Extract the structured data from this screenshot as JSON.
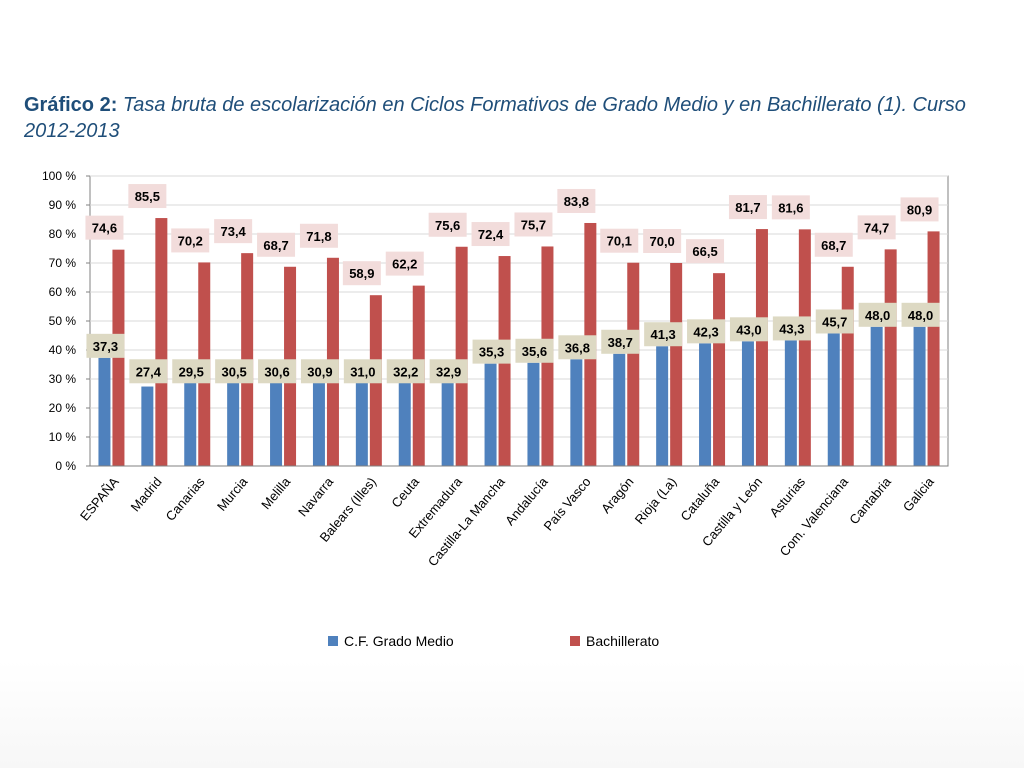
{
  "title_prefix": "Gráfico 2:",
  "title_text": "Tasa bruta de escolarización en Ciclos Formativos de Grado Medio y en Bachillerato (1). Curso 2012-2013",
  "colors": {
    "grado_medio": "#4f81bd",
    "bachillerato": "#c0504d",
    "grado_medio_label_bg": "#ddd9c3",
    "bachillerato_label_bg": "#f2dcdb",
    "gridline": "#d9d9d9",
    "axis": "#808080",
    "text": "#000000"
  },
  "chart_data": {
    "type": "bar",
    "title": "Tasa bruta de escolarización en Ciclos Formativos de Grado Medio y en Bachillerato (1). Curso 2012-2013",
    "categories": [
      "ESPAÑA",
      "Madrid",
      "Canarias",
      "Murcia",
      "Melilla",
      "Navarra",
      "Balears (Illes)",
      "Ceuta",
      "Extremadura",
      "Castilla-La Mancha",
      "Andalucía",
      "País Vasco",
      "Aragón",
      "Rioja (La)",
      "Cataluña",
      "Castilla y León",
      "Asturias",
      "Com. Valenciana",
      "Cantabria",
      "Galicia"
    ],
    "series": [
      {
        "name": "C.F. Grado Medio",
        "values": [
          37.3,
          27.4,
          29.5,
          30.5,
          30.6,
          30.9,
          31.0,
          32.2,
          32.9,
          35.3,
          35.6,
          36.8,
          38.7,
          41.3,
          42.3,
          43.0,
          43.3,
          45.7,
          48.0,
          48.0
        ],
        "labels": [
          "37,3",
          "27,4",
          "29,5",
          "30,5",
          "30,6",
          "30,9",
          "31,0",
          "32,2",
          "32,9",
          "35,3",
          "35,6",
          "36,8",
          "38,7",
          "41,3",
          "42,3",
          "43,0",
          "43,3",
          "45,7",
          "48,0",
          "48,0"
        ]
      },
      {
        "name": "Bachillerato",
        "values": [
          74.6,
          85.5,
          70.2,
          73.4,
          68.7,
          71.8,
          58.9,
          62.2,
          75.6,
          72.4,
          75.7,
          83.8,
          70.1,
          70.0,
          66.5,
          81.7,
          81.6,
          68.7,
          74.7,
          80.9
        ],
        "labels": [
          "74,6",
          "85,5",
          "70,2",
          "73,4",
          "68,7",
          "71,8",
          "58,9",
          "62,2",
          "75,6",
          "72,4",
          "75,7",
          "83,8",
          "70,1",
          "70,0",
          "66,5",
          "81,7",
          "81,6",
          "68,7",
          "74,7",
          "80,9"
        ]
      }
    ],
    "ylim": [
      0,
      100
    ],
    "yticks": [
      "0 %",
      "10 %",
      "20 %",
      "30 %",
      "40 %",
      "50 %",
      "60 %",
      "70 %",
      "80 %",
      "90 %",
      "100 %"
    ],
    "grid": true,
    "legend_position": "bottom"
  }
}
